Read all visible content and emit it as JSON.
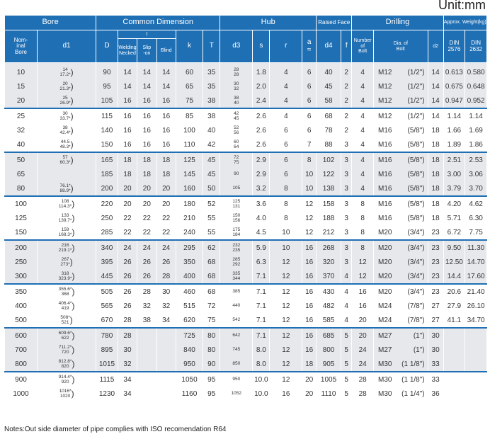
{
  "unit": "Unit:mm",
  "headers": {
    "bore": "Bore",
    "common": "Common Dimension",
    "hub": "Hub",
    "raised": "Raised Face",
    "drilling": "Drilling",
    "weight": "Approx. Weight(kg)",
    "nominal_bore": [
      "Nom-",
      "inal",
      "Bore"
    ],
    "d1": "d1",
    "D": "D",
    "t": "t",
    "welding_neck": [
      "Welding",
      "Necked"
    ],
    "slip_on": [
      "Slip",
      "-on"
    ],
    "blind": "Blind",
    "k": "k",
    "T": "T",
    "d3": "d3",
    "s": "s",
    "r": "r",
    "a": "a",
    "a_sub": "≈",
    "d4": "d4",
    "f": "f",
    "num_bolt": [
      "Number",
      "of",
      "Bolt"
    ],
    "dia_bolt": [
      "Dia. of",
      "Bolt"
    ],
    "d2": "d2",
    "din2576": [
      "DIN",
      "2576"
    ],
    "din2632": [
      "DIN",
      "2632"
    ]
  },
  "groups": [
    {
      "rows": [
        {
          "nb": "10",
          "d1": [
            "14",
            "17.2*"
          ],
          "D": "90",
          "tw": "14",
          "ts": "14",
          "tb": "14",
          "k": "60",
          "T": "35",
          "d3": [
            "28",
            "28"
          ],
          "s": "1.8",
          "r": "4",
          "a": "6",
          "d4": "40",
          "f": "2",
          "n": "4",
          "bolt": "M12",
          "inch": "(1/2\")",
          "d2": "14",
          "w1": "0.613",
          "w2": "0.580"
        },
        {
          "nb": "15",
          "d1": [
            "20",
            "21.3*"
          ],
          "D": "95",
          "tw": "14",
          "ts": "14",
          "tb": "14",
          "k": "65",
          "T": "35",
          "d3": [
            "30",
            "32"
          ],
          "s": "2.0",
          "r": "4",
          "a": "6",
          "d4": "45",
          "f": "2",
          "n": "4",
          "bolt": "M12",
          "inch": "(1/2\")",
          "d2": "14",
          "w1": "0.675",
          "w2": "0.648"
        },
        {
          "nb": "20",
          "d1": [
            "25",
            "26.9*"
          ],
          "D": "105",
          "tw": "16",
          "ts": "16",
          "tb": "16",
          "k": "75",
          "T": "38",
          "d3": [
            "38",
            "40"
          ],
          "s": "2.4",
          "r": "4",
          "a": "6",
          "d4": "58",
          "f": "2",
          "n": "4",
          "bolt": "M12",
          "inch": "(1/2\")",
          "d2": "14",
          "w1": "0.947",
          "w2": "0.952"
        }
      ]
    },
    {
      "rows": [
        {
          "nb": "25",
          "d1": [
            "30",
            "33.7*"
          ],
          "D": "115",
          "tw": "16",
          "ts": "16",
          "tb": "16",
          "k": "85",
          "T": "38",
          "d3": [
            "42",
            "45"
          ],
          "s": "2.6",
          "r": "4",
          "a": "6",
          "d4": "68",
          "f": "2",
          "n": "4",
          "bolt": "M12",
          "inch": "(1/2\")",
          "d2": "14",
          "w1": "1.14",
          "w2": "1.14"
        },
        {
          "nb": "32",
          "d1": [
            "38",
            "42.4*"
          ],
          "D": "140",
          "tw": "16",
          "ts": "16",
          "tb": "16",
          "k": "100",
          "T": "40",
          "d3": [
            "52",
            "56"
          ],
          "s": "2.6",
          "r": "6",
          "a": "6",
          "d4": "78",
          "f": "2",
          "n": "4",
          "bolt": "M16",
          "inch": "(5/8\")",
          "d2": "18",
          "w1": "1.66",
          "w2": "1.69"
        },
        {
          "nb": "40",
          "d1": [
            "44.5",
            "48.3*"
          ],
          "D": "150",
          "tw": "16",
          "ts": "16",
          "tb": "16",
          "k": "110",
          "T": "42",
          "d3": [
            "60",
            "64"
          ],
          "s": "2.6",
          "r": "6",
          "a": "7",
          "d4": "88",
          "f": "3",
          "n": "4",
          "bolt": "M16",
          "inch": "(5/8\")",
          "d2": "18",
          "w1": "1.89",
          "w2": "1.86"
        }
      ]
    },
    {
      "rows": [
        {
          "nb": "50",
          "d1": [
            "57",
            "60.3*"
          ],
          "D": "165",
          "tw": "18",
          "ts": "18",
          "tb": "18",
          "k": "125",
          "T": "45",
          "d3": [
            "72",
            "75"
          ],
          "s": "2.9",
          "r": "6",
          "a": "8",
          "d4": "102",
          "f": "3",
          "n": "4",
          "bolt": "M16",
          "inch": "(5/8\")",
          "d2": "18",
          "w1": "2.51",
          "w2": "2.53"
        },
        {
          "nb": "65",
          "d1": [
            "",
            ""
          ],
          "D": "185",
          "tw": "18",
          "ts": "18",
          "tb": "18",
          "k": "145",
          "T": "45",
          "d3": [
            "90",
            ""
          ],
          "s": "2.9",
          "r": "6",
          "a": "10",
          "d4": "122",
          "f": "3",
          "n": "4",
          "bolt": "M16",
          "inch": "(5/8\")",
          "d2": "18",
          "w1": "3.00",
          "w2": "3.06"
        },
        {
          "nb": "80",
          "d1": [
            "76.1*",
            "88.9*"
          ],
          "D": "200",
          "tw": "20",
          "ts": "20",
          "tb": "20",
          "k": "160",
          "T": "50",
          "d3": [
            "105",
            ""
          ],
          "s": "3.2",
          "r": "8",
          "a": "10",
          "d4": "138",
          "f": "3",
          "n": "4",
          "bolt": "M16",
          "inch": "(5/8\")",
          "d2": "18",
          "w1": "3.79",
          "w2": "3.70"
        }
      ]
    },
    {
      "rows": [
        {
          "nb": "100",
          "d1": [
            "108",
            "114.3*"
          ],
          "D": "220",
          "tw": "20",
          "ts": "20",
          "tb": "20",
          "k": "180",
          "T": "52",
          "d3": [
            "125",
            "131"
          ],
          "s": "3.6",
          "r": "8",
          "a": "12",
          "d4": "158",
          "f": "3",
          "n": "8",
          "bolt": "M16",
          "inch": "(5/8\")",
          "d2": "18",
          "w1": "4.20",
          "w2": "4.62"
        },
        {
          "nb": "125",
          "d1": [
            "133",
            "139.7*"
          ],
          "D": "250",
          "tw": "22",
          "ts": "22",
          "tb": "22",
          "k": "210",
          "T": "55",
          "d3": [
            "150",
            "156"
          ],
          "s": "4.0",
          "r": "8",
          "a": "12",
          "d4": "188",
          "f": "3",
          "n": "8",
          "bolt": "M16",
          "inch": "(5/8\")",
          "d2": "18",
          "w1": "5.71",
          "w2": "6.30"
        },
        {
          "nb": "150",
          "d1": [
            "159",
            "168.3*"
          ],
          "D": "285",
          "tw": "22",
          "ts": "22",
          "tb": "22",
          "k": "240",
          "T": "55",
          "d3": [
            "175",
            "184"
          ],
          "s": "4.5",
          "r": "10",
          "a": "12",
          "d4": "212",
          "f": "3",
          "n": "8",
          "bolt": "M20",
          "inch": "(3/4\")",
          "d2": "23",
          "w1": "6.72",
          "w2": "7.75"
        }
      ]
    },
    {
      "rows": [
        {
          "nb": "200",
          "d1": [
            "216",
            "219.1*"
          ],
          "D": "340",
          "tw": "24",
          "ts": "24",
          "tb": "24",
          "k": "295",
          "T": "62",
          "d3": [
            "232",
            "235"
          ],
          "s": "5.9",
          "r": "10",
          "a": "16",
          "d4": "268",
          "f": "3",
          "n": "8",
          "bolt": "M20",
          "inch": "(3/4\")",
          "d2": "23",
          "w1": "9.50",
          "w2": "11.30"
        },
        {
          "nb": "250",
          "d1": [
            "267",
            "273*"
          ],
          "D": "395",
          "tw": "26",
          "ts": "26",
          "tb": "26",
          "k": "350",
          "T": "68",
          "d3": [
            "285",
            "292"
          ],
          "s": "6.3",
          "r": "12",
          "a": "16",
          "d4": "320",
          "f": "3",
          "n": "12",
          "bolt": "M20",
          "inch": "(3/4\")",
          "d2": "23",
          "w1": "12.50",
          "w2": "14.70"
        },
        {
          "nb": "300",
          "d1": [
            "318",
            "323.9*"
          ],
          "D": "445",
          "tw": "26",
          "ts": "26",
          "tb": "28",
          "k": "400",
          "T": "68",
          "d3": [
            "335",
            "344"
          ],
          "s": "7.1",
          "r": "12",
          "a": "16",
          "d4": "370",
          "f": "4",
          "n": "12",
          "bolt": "M20",
          "inch": "(3/4\")",
          "d2": "23",
          "w1": "14.4",
          "w2": "17.60"
        }
      ]
    },
    {
      "rows": [
        {
          "nb": "350",
          "d1": [
            "355.6*",
            "368"
          ],
          "D": "505",
          "tw": "26",
          "ts": "28",
          "tb": "30",
          "k": "460",
          "T": "68",
          "d3": [
            "385",
            ""
          ],
          "s": "7.1",
          "r": "12",
          "a": "16",
          "d4": "430",
          "f": "4",
          "n": "16",
          "bolt": "M20",
          "inch": "(3/4\")",
          "d2": "23",
          "w1": "20.6",
          "w2": "21.40"
        },
        {
          "nb": "400",
          "d1": [
            "406.4*",
            "419"
          ],
          "D": "565",
          "tw": "26",
          "ts": "32",
          "tb": "32",
          "k": "515",
          "T": "72",
          "d3": [
            "440",
            ""
          ],
          "s": "7.1",
          "r": "12",
          "a": "16",
          "d4": "482",
          "f": "4",
          "n": "16",
          "bolt": "M24",
          "inch": "(7/8\")",
          "d2": "27",
          "w1": "27.9",
          "w2": "26.10"
        },
        {
          "nb": "500",
          "d1": [
            "508*",
            "521"
          ],
          "D": "670",
          "tw": "28",
          "ts": "38",
          "tb": "34",
          "k": "620",
          "T": "75",
          "d3": [
            "542",
            ""
          ],
          "s": "7.1",
          "r": "12",
          "a": "16",
          "d4": "585",
          "f": "4",
          "n": "20",
          "bolt": "M24",
          "inch": "(7/8\")",
          "d2": "27",
          "w1": "41.1",
          "w2": "34.70"
        }
      ]
    },
    {
      "rows": [
        {
          "nb": "600",
          "d1": [
            "609.6*",
            "622"
          ],
          "D": "780",
          "tw": "28",
          "ts": "",
          "tb": "",
          "k": "725",
          "T": "80",
          "d3": [
            "642",
            ""
          ],
          "s": "7.1",
          "r": "12",
          "a": "16",
          "d4": "685",
          "f": "5",
          "n": "20",
          "bolt": "M27",
          "inch": "(1\")",
          "d2": "30",
          "w1": "",
          "w2": ""
        },
        {
          "nb": "700",
          "d1": [
            "711.2*",
            "720"
          ],
          "D": "895",
          "tw": "30",
          "ts": "",
          "tb": "",
          "k": "840",
          "T": "80",
          "d3": [
            "745",
            ""
          ],
          "s": "8.0",
          "r": "12",
          "a": "16",
          "d4": "800",
          "f": "5",
          "n": "24",
          "bolt": "M27",
          "inch": "(1\")",
          "d2": "30",
          "w1": "",
          "w2": ""
        },
        {
          "nb": "800",
          "d1": [
            "812.8*",
            "820"
          ],
          "D": "1015",
          "tw": "32",
          "ts": "",
          "tb": "",
          "k": "950",
          "T": "90",
          "d3": [
            "850",
            ""
          ],
          "s": "8.0",
          "r": "12",
          "a": "18",
          "d4": "905",
          "f": "5",
          "n": "24",
          "bolt": "M30",
          "inch": "(1 1/8\")",
          "d2": "33",
          "w1": "",
          "w2": ""
        }
      ]
    },
    {
      "rows": [
        {
          "nb": "900",
          "d1": [
            "914.4*",
            "920"
          ],
          "D": "1115",
          "tw": "34",
          "ts": "",
          "tb": "",
          "k": "1050",
          "T": "95",
          "d3": [
            "950",
            ""
          ],
          "s": "10.0",
          "r": "12",
          "a": "20",
          "d4": "1005",
          "f": "5",
          "n": "28",
          "bolt": "M30",
          "inch": "(1 1/8\")",
          "d2": "33",
          "w1": "",
          "w2": ""
        },
        {
          "nb": "1000",
          "d1": [
            "1016*",
            "1020"
          ],
          "D": "1230",
          "tw": "34",
          "ts": "",
          "tb": "",
          "k": "1160",
          "T": "95",
          "d3": [
            "1052",
            ""
          ],
          "s": "10.0",
          "r": "16",
          "a": "20",
          "d4": "1110",
          "f": "5",
          "n": "28",
          "bolt": "M30",
          "inch": "(1 1/4\")",
          "d2": "36",
          "w1": "",
          "w2": ""
        }
      ]
    }
  ],
  "note": "Notes:Out side diameter of pipe complies with ISO recomendation R64"
}
